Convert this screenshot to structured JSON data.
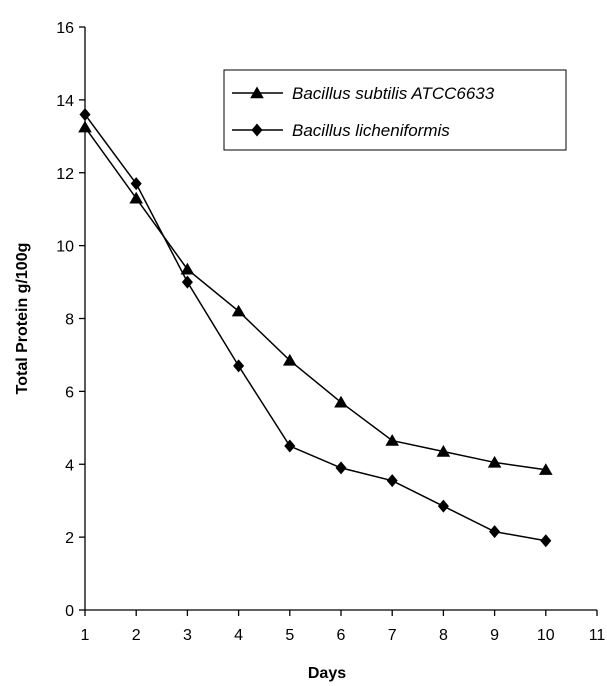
{
  "chart_data": {
    "type": "line",
    "xlabel": "Days",
    "ylabel": "Total Protein g/100g",
    "xlim": [
      1,
      11
    ],
    "ylim": [
      0,
      16
    ],
    "x_ticks": [
      1,
      2,
      3,
      4,
      5,
      6,
      7,
      8,
      9,
      10,
      11
    ],
    "y_ticks": [
      0,
      2,
      4,
      6,
      8,
      10,
      12,
      14,
      16
    ],
    "grid": false,
    "legend_position": "top-right",
    "series": [
      {
        "name": "Bacillus subtilis ATCC6633",
        "marker": "triangle",
        "color": "#000000",
        "x": [
          1,
          2,
          3,
          4,
          5,
          6,
          7,
          8,
          9,
          10
        ],
        "y": [
          13.25,
          11.3,
          9.35,
          8.2,
          6.85,
          5.7,
          4.65,
          4.35,
          4.05,
          3.85
        ]
      },
      {
        "name": "Bacillus licheniformis",
        "marker": "diamond",
        "color": "#000000",
        "x": [
          1,
          2,
          3,
          4,
          5,
          6,
          7,
          8,
          9,
          10
        ],
        "y": [
          13.6,
          11.7,
          9.0,
          6.7,
          4.5,
          3.9,
          3.55,
          2.85,
          2.15,
          1.9
        ]
      }
    ]
  }
}
